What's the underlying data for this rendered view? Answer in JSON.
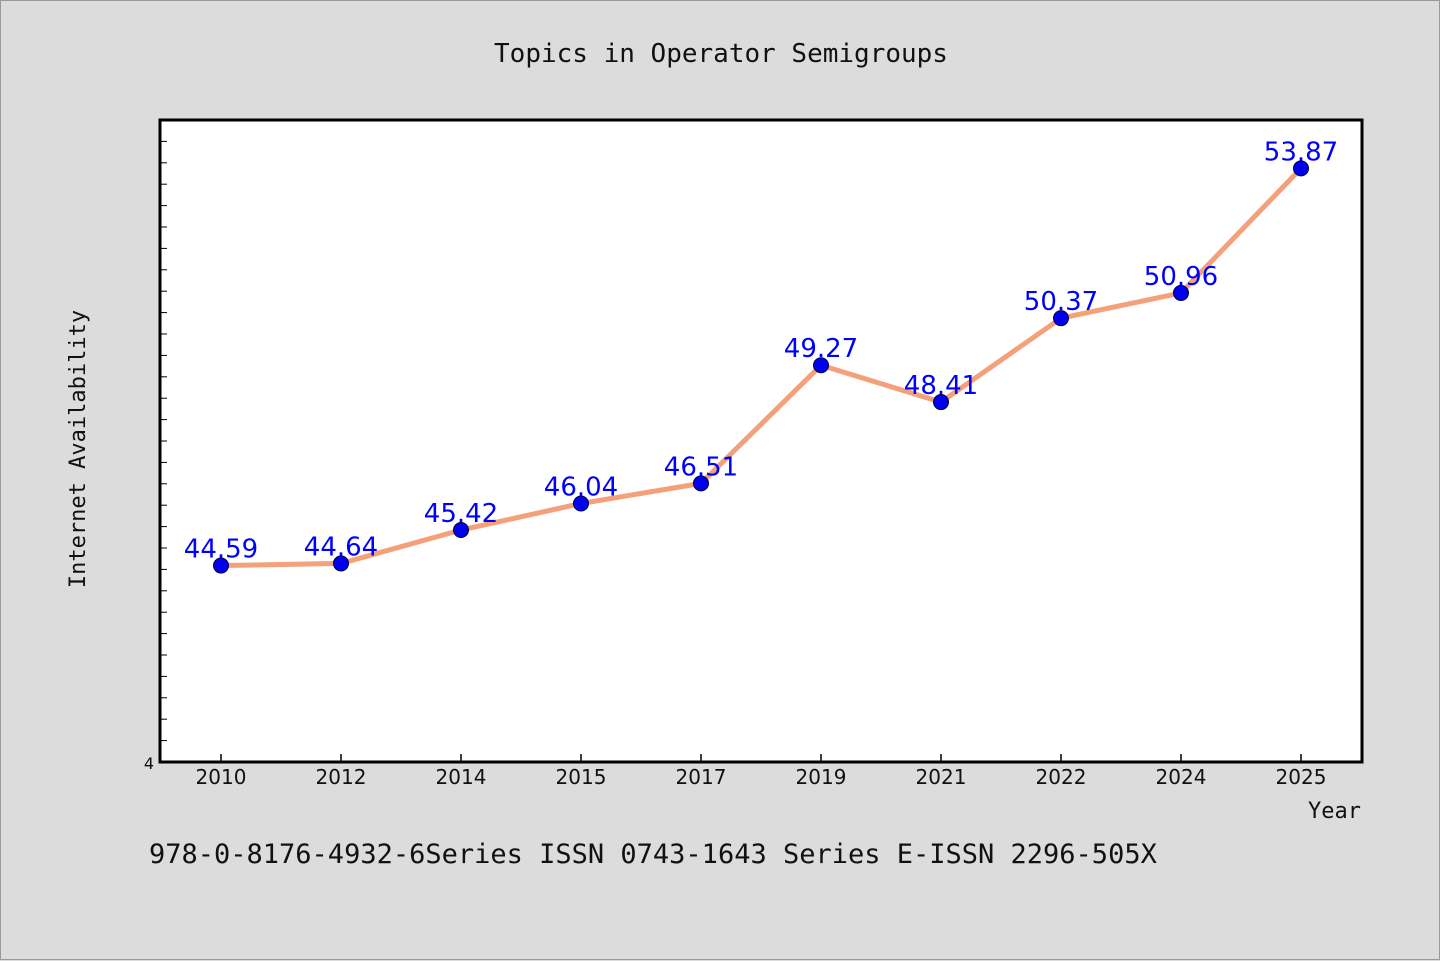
{
  "chart_data": {
    "type": "line",
    "title": "Topics in Operator Semigroups",
    "xlabel": "Year",
    "ylabel": "Internet Availability",
    "categories": [
      "2010",
      "2012",
      "2014",
      "2015",
      "2017",
      "2019",
      "2021",
      "2022",
      "2024",
      "2025"
    ],
    "series": [
      {
        "values": [
          44.59,
          44.64,
          45.42,
          46.04,
          46.51,
          49.27,
          48.41,
          50.37,
          50.96,
          53.87
        ],
        "labels": [
          "44.59",
          "44.64",
          "45.42",
          "46.04",
          "46.51",
          "49.27",
          "48.41",
          "50.37",
          "50.96",
          "53.87"
        ],
        "line_color": "#f4a07a",
        "marker_color": "#0000ee",
        "label_color": "#0000ff"
      }
    ],
    "y_tick_label": "4",
    "ylim": [
      40,
      55
    ],
    "grid": false,
    "legend": "none"
  },
  "footer_text": "978-0-8176-4932-6Series ISSN 0743-1643 Series E-ISSN 2296-505X"
}
